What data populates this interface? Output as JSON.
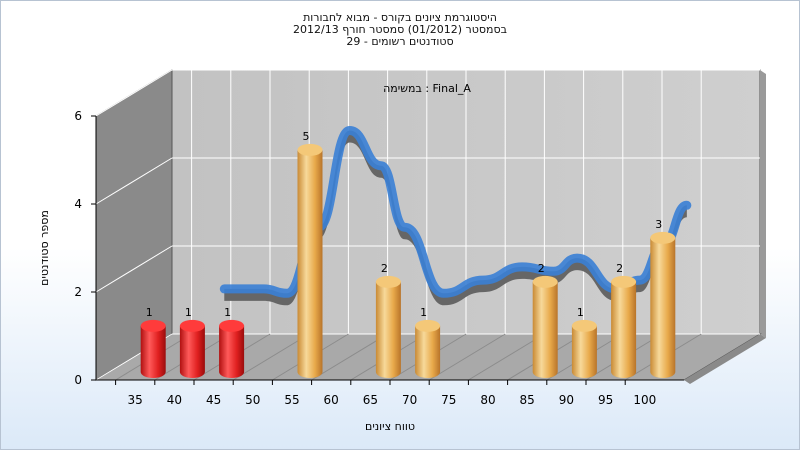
{
  "chart_data": {
    "type": "bar",
    "title_lines": [
      "היסטוגרמת ציונים בקורס - מבוא לחבורות",
      "בסמסטר  (01/2012)  סמסטר חורף 2012/13",
      "סטודנטים רשומים - 29"
    ],
    "annotation": "במשימה : Final_A",
    "xlabel": "טווח ציונים",
    "ylabel": "מספר סטודנטים",
    "ylim": [
      0,
      6
    ],
    "yticks": [
      0,
      2,
      4,
      6
    ],
    "categories": [
      "35",
      "40",
      "45",
      "50",
      "55",
      "60",
      "65",
      "70",
      "75",
      "80",
      "85",
      "90",
      "95",
      "100"
    ],
    "values": [
      1,
      1,
      1,
      0,
      5,
      0,
      2,
      1,
      0,
      0,
      2,
      1,
      2,
      3
    ],
    "bar_colors": {
      "fail": "#e02020",
      "pass": "#e8a94a"
    },
    "fail_categories": [
      "35",
      "40",
      "45"
    ],
    "curve": {
      "x": [
        42,
        47,
        50,
        54,
        58,
        62,
        65,
        70,
        75,
        80,
        84,
        87,
        92,
        95,
        98,
        101
      ],
      "y": [
        1.6,
        1.6,
        1.5,
        3.0,
        5.2,
        4.4,
        3.0,
        1.5,
        1.8,
        2.1,
        2.0,
        2.3,
        1.6,
        1.8,
        2.6,
        3.5
      ]
    },
    "curve_colors": {
      "front": "#3a7fd5",
      "back": "#666666"
    },
    "grid": true
  }
}
